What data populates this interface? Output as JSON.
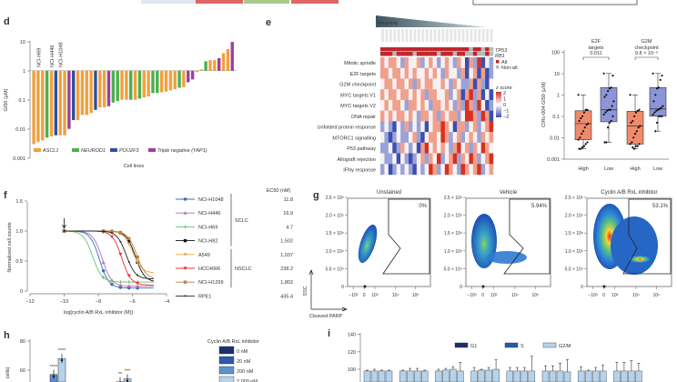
{
  "top_strip": {
    "colors": [
      "#dfe6ef",
      "#e06565",
      "#a9c98c",
      "#e06565"
    ]
  },
  "panel_labels": {
    "d": "d",
    "e": "e",
    "f": "f",
    "g": "g",
    "h": "h",
    "i": "i"
  },
  "chart_data": [
    {
      "id": "d",
      "type": "bar",
      "log_scale": true,
      "ylabel": "GI50 (µM)",
      "xlabel": "Cell lines",
      "ylim": [
        0.001,
        10
      ],
      "yticks": [
        "0.001",
        "0.01",
        "0.1",
        "1",
        "10"
      ],
      "baseline": 1,
      "values": [
        0.003,
        0.0035,
        0.004,
        0.005,
        0.0055,
        0.006,
        0.006,
        0.006,
        0.01,
        0.02,
        0.02,
        0.03,
        0.03,
        0.035,
        0.045,
        0.055,
        0.055,
        0.06,
        0.08,
        0.09,
        0.1,
        0.1,
        0.1,
        0.1,
        0.11,
        0.12,
        0.13,
        0.17,
        0.17,
        0.18,
        0.19,
        0.21,
        0.23,
        0.26,
        0.27,
        0.4,
        0.5,
        0.9,
        1.1,
        2.1,
        2.3,
        2.3,
        2.7,
        4,
        5.5,
        9.7
      ],
      "subtypes": [
        "A",
        "A",
        "A",
        "N",
        "A",
        "P",
        "A",
        "A",
        "Y",
        "P",
        "A",
        "A",
        "A",
        "A",
        "P",
        "A",
        "A",
        "Y",
        "N",
        "N",
        "A",
        "A",
        "N",
        "A",
        "N",
        "A",
        "A",
        "N",
        "N",
        "A",
        "A",
        "A",
        "A",
        "N",
        "A",
        "Y",
        "Y",
        "A",
        "A",
        "N",
        "A",
        "A",
        "Y",
        "A",
        "A",
        "Y"
      ],
      "annotations": [
        {
          "label": "NCI-H69",
          "bar": 1
        },
        {
          "label": "NCI-H446",
          "bar": 4
        },
        {
          "label": "NCI-H1048",
          "bar": 6
        }
      ],
      "legend": [
        {
          "key": "A",
          "label": "ASCL1",
          "color": "#f2a03d"
        },
        {
          "key": "N",
          "label": "NEUROD1",
          "color": "#4caf50"
        },
        {
          "key": "P",
          "label": "POU2F3",
          "color": "#2c4fa0"
        },
        {
          "key": "Y",
          "label": "Triple negative (YAP1)",
          "color": "#9c3f9c"
        }
      ]
    },
    {
      "id": "e-heatmap",
      "type": "heatmap",
      "header": "Sensitivity",
      "rows": [
        "Mitotic spindle",
        "E2F targets",
        "G2M checkpoint",
        "MYC targets V1",
        "MYC targets V2",
        "DNA repair",
        "Unfolded protein response",
        "MTORC1 signalling",
        "P53 pathway",
        "Allograft rejection",
        "IFNγ response"
      ],
      "annotation_rows": [
        "TP53",
        "RB1"
      ],
      "annotation_legend": [
        {
          "label": "Alt",
          "color": "#c0272d"
        },
        {
          "label": "Non-alt",
          "color": "#b8b8b8"
        }
      ],
      "annotation_values": [
        [
          1,
          1,
          1,
          1,
          1,
          1,
          1,
          1,
          1,
          1,
          1,
          1,
          1,
          1,
          1,
          1,
          1,
          1,
          1,
          1,
          1,
          1,
          0,
          1,
          1,
          0,
          1,
          0
        ],
        [
          1,
          1,
          1,
          0,
          1,
          1,
          1,
          1,
          0,
          1,
          1,
          1,
          1,
          1,
          0,
          1,
          1,
          1,
          0,
          1,
          1,
          0,
          0,
          1,
          0,
          0,
          1,
          0
        ]
      ],
      "scale_label": "z score",
      "scale_ticks": [
        "2",
        "1",
        "0",
        "−1",
        "−2"
      ],
      "values": [
        [
          1,
          0,
          1,
          1,
          0,
          -1,
          1,
          0,
          0,
          1,
          -1,
          0,
          1,
          0,
          -1,
          0,
          1,
          0,
          -1,
          1,
          0,
          -2,
          1,
          -1,
          2,
          -2,
          0,
          -1
        ],
        [
          1,
          1,
          0,
          1,
          1,
          0,
          1,
          0,
          1,
          0,
          0,
          1,
          0,
          1,
          0,
          -1,
          1,
          0,
          0,
          -1,
          1,
          -2,
          0,
          1,
          -2,
          1,
          -2,
          -1
        ],
        [
          0,
          1,
          1,
          0,
          1,
          1,
          0,
          1,
          -1,
          1,
          0,
          1,
          1,
          0,
          0,
          1,
          0,
          -1,
          1,
          0,
          -1,
          -1,
          1,
          -2,
          1,
          -1,
          -2,
          0
        ],
        [
          1,
          0,
          1,
          1,
          0,
          1,
          1,
          0,
          1,
          0,
          1,
          -1,
          1,
          1,
          0,
          0,
          1,
          -1,
          0,
          1,
          -2,
          1,
          2,
          -1,
          1,
          -2,
          0,
          -2
        ],
        [
          0,
          1,
          0,
          1,
          1,
          0,
          -1,
          1,
          1,
          0,
          1,
          0,
          -1,
          1,
          1,
          0,
          1,
          0,
          -1,
          1,
          -1,
          2,
          1,
          -1,
          2,
          0,
          -2,
          -1
        ],
        [
          1,
          0,
          1,
          0,
          1,
          1,
          0,
          1,
          0,
          -1,
          1,
          1,
          0,
          1,
          -1,
          1,
          0,
          1,
          1,
          -1,
          0,
          2,
          2,
          1,
          -1,
          2,
          1,
          -2
        ],
        [
          -1,
          0,
          -1,
          -2,
          0,
          -1,
          1,
          -1,
          0,
          -1,
          0,
          -2,
          0,
          1,
          1,
          2,
          1,
          0,
          -2,
          1,
          1,
          -1,
          0,
          1,
          -1,
          0,
          1,
          2
        ],
        [
          0,
          -1,
          -2,
          -1,
          0,
          -1,
          -1,
          0,
          1,
          -1,
          -2,
          0,
          1,
          1,
          0,
          2,
          1,
          -1,
          0,
          1,
          -1,
          0,
          1,
          0,
          -1,
          1,
          0,
          1
        ],
        [
          -1,
          -1,
          0,
          -2,
          -1,
          1,
          0,
          -1,
          0,
          -2,
          1,
          2,
          0,
          1,
          0,
          1,
          0,
          -1,
          1,
          2,
          0,
          1,
          -1,
          1,
          0,
          2,
          1,
          0
        ],
        [
          0,
          -1,
          -1,
          0,
          -2,
          0,
          -1,
          -2,
          -1,
          0,
          1,
          -1,
          1,
          0,
          2,
          -1,
          0,
          1,
          2,
          -1,
          1,
          0,
          2,
          1,
          -1,
          0,
          1,
          2
        ],
        [
          -1,
          0,
          -2,
          -1,
          0,
          -1,
          0,
          -1,
          -2,
          0,
          -1,
          0,
          2,
          1,
          -1,
          0,
          2,
          1,
          0,
          -1,
          2,
          1,
          0,
          1,
          2,
          -1,
          0,
          1
        ]
      ]
    },
    {
      "id": "e-box",
      "type": "box",
      "log_scale": true,
      "ylabel": "CIRc-004 GI50 (µM)",
      "ylim": [
        0.001,
        100
      ],
      "yticks": [
        "0.001",
        "0.01",
        "0.1",
        "1",
        "10",
        "100"
      ],
      "comparisons": [
        {
          "title": [
            "E2F",
            "targets"
          ],
          "p": "0.011"
        },
        {
          "title": [
            "G2M",
            "checkpoint"
          ],
          "p": "9.8 × 10⁻⁵"
        }
      ],
      "groups": [
        {
          "label": "High",
          "color": "#f08a6a",
          "q1": 0.008,
          "median": 0.045,
          "q3": 0.18,
          "min": 0.003,
          "max": 1,
          "points": [
            1,
            0.2,
            0.2,
            0.15,
            0.1,
            0.08,
            0.06,
            0.045,
            0.04,
            0.03,
            0.02,
            0.015,
            0.01,
            0.008,
            0.006,
            0.005,
            0.004,
            0.0035,
            0.003,
            0.003
          ]
        },
        {
          "label": "Low",
          "color": "#8c95d8",
          "q1": 0.055,
          "median": 0.2,
          "q3": 2.2,
          "min": 0.006,
          "max": 10,
          "points": [
            10,
            8,
            2.2,
            2,
            1.5,
            1,
            0.8,
            0.5,
            0.3,
            0.2,
            0.2,
            0.18,
            0.15,
            0.12,
            0.1,
            0.06,
            0.05,
            0.03,
            0.006,
            0.006
          ]
        },
        {
          "label": "High",
          "color": "#f08a6a",
          "q1": 0.005,
          "median": 0.035,
          "q3": 0.17,
          "min": 0.003,
          "max": 1,
          "points": [
            1,
            0.2,
            0.18,
            0.15,
            0.1,
            0.06,
            0.05,
            0.035,
            0.03,
            0.02,
            0.015,
            0.01,
            0.006,
            0.005,
            0.005,
            0.004,
            0.004,
            0.003,
            0.0035
          ]
        },
        {
          "label": "Low",
          "color": "#8c95d8",
          "q1": 0.1,
          "median": 0.22,
          "q3": 2.2,
          "min": 0.02,
          "max": 10,
          "points": [
            10,
            8,
            5,
            2.2,
            2,
            1,
            0.5,
            0.3,
            0.25,
            0.22,
            0.2,
            0.18,
            0.15,
            0.12,
            0.1,
            0.1,
            0.1,
            0.05,
            0.02
          ]
        }
      ]
    },
    {
      "id": "f",
      "type": "line",
      "xlabel": "log[cyclin A/B RxL inhibitor (M)]",
      "ylabel": "Normalized cell counts",
      "xlim": [
        -12,
        -4
      ],
      "ylim": [
        0,
        1.5
      ],
      "xticks": [
        "−12",
        "−10",
        "−8",
        "−6",
        "−4"
      ],
      "yticks": [
        "0",
        "0.5",
        "1.0",
        "1.5"
      ],
      "ec50_header": "EC50 (nM)",
      "groups": [
        {
          "label": "SCLC",
          "from": 0,
          "to": 3
        },
        {
          "label": "NSCLC",
          "from": 4,
          "to": 6
        }
      ],
      "series": [
        {
          "name": "NCI-H1048",
          "color": "#3b6fb6",
          "marker": "circle",
          "ec50": "11.8",
          "ec50_nM": 11.8,
          "bottom": 0.05
        },
        {
          "name": "NCI-H446",
          "color": "#b06fb8",
          "marker": "triangle",
          "ec50": "16.9",
          "ec50_nM": 16.9,
          "bottom": 0.08
        },
        {
          "name": "NCI-H69",
          "color": "#6bc06f",
          "marker": "plus",
          "ec50": "4.7",
          "ec50_nM": 4.7,
          "bottom": 0.15
        },
        {
          "name": "NCI-H82",
          "color": "#111111",
          "marker": "square",
          "ec50": "1,502",
          "ec50_nM": 1502,
          "bottom": 0.15
        },
        {
          "name": "A549",
          "color": "#f0a545",
          "marker": "down-triangle",
          "ec50": "1,037",
          "ec50_nM": 1037,
          "bottom": 0.3
        },
        {
          "name": "HCC4006",
          "color": "#e03636",
          "marker": "down-triangle",
          "ec50": "238.2",
          "ec50_nM": 238.2,
          "bottom": 0.1
        },
        {
          "name": "NCI-H1299",
          "color": "#b38545",
          "marker": "square",
          "ec50": "1,802",
          "ec50_nM": 1802,
          "bottom": 0.2
        },
        {
          "name": "RPE1",
          "color": "#222222",
          "marker": "dot",
          "ec50": "435.4",
          "ec50_nM": 435.4,
          "bottom": 0.2
        }
      ],
      "treatment_arrow_x": -10
    },
    {
      "id": "h",
      "type": "bar",
      "ylabel": "cells)",
      "ylim": [
        40,
        80
      ],
      "yticks": [
        "60",
        "80"
      ],
      "legend_title": "Cyclin A/B RxL inhibitor",
      "legend": [
        {
          "label": "0 nM",
          "color": "#1d2f6b"
        },
        {
          "label": "20 nM",
          "color": "#2d5aa8"
        },
        {
          "label": "200 nM",
          "color": "#5b93cf"
        },
        {
          "label": "2,000 nM",
          "color": "#b6d3ec"
        }
      ],
      "bars": [
        {
          "dose": 2,
          "value": 57,
          "sig": "****"
        },
        {
          "dose": 3,
          "value": 68,
          "sig": "****"
        },
        {
          "dose": 2,
          "value": 52,
          "sig": "**"
        },
        {
          "dose": 3,
          "value": 54,
          "sig": "***"
        }
      ]
    },
    {
      "id": "i",
      "type": "bar",
      "stacked": true,
      "ylim": [
        90,
        140
      ],
      "yticks": [
        "100",
        "120",
        "140"
      ],
      "legend": [
        {
          "label": "G1",
          "color": "#1d2f6b"
        },
        {
          "label": "S",
          "color": "#2d5aa8"
        },
        {
          "label": "G2/M",
          "color": "#b6d3ec"
        }
      ],
      "groups": [
        [
          [
            98,
            1
          ],
          [
            98,
            2
          ],
          [
            98,
            1
          ],
          [
            98,
            1
          ]
        ],
        [
          [
            98,
            1
          ],
          [
            98,
            3
          ],
          [
            98,
            3
          ],
          [
            98,
            1
          ]
        ],
        [
          [
            98,
            2
          ],
          [
            99,
            2
          ],
          [
            100,
            3
          ],
          [
            98,
            10
          ]
        ],
        [
          [
            98,
            4
          ],
          [
            99,
            1
          ],
          [
            99,
            3
          ],
          [
            100,
            11
          ]
        ],
        [
          [
            98,
            4
          ],
          [
            98,
            4
          ],
          [
            98,
            4
          ],
          [
            98,
            17
          ]
        ],
        [
          [
            98,
            6
          ],
          [
            98,
            6
          ],
          [
            98,
            9
          ],
          [
            97,
            14
          ]
        ],
        [
          [
            98,
            5
          ],
          [
            98,
            1
          ],
          [
            98,
            4
          ],
          [
            98,
            7
          ]
        ],
        [
          [
            98,
            10
          ],
          [
            98,
            10
          ],
          [
            98,
            12
          ],
          [
            98,
            9
          ]
        ]
      ]
    }
  ],
  "panel_g": {
    "plots": [
      {
        "title": "Unstained",
        "percent": "0%",
        "density": "low"
      },
      {
        "title": "Vehicle",
        "percent": "5.94%",
        "density": "mid"
      },
      {
        "title": "Cyclin A/B RxL inhibitor",
        "percent": "53.1%",
        "density": "high"
      }
    ],
    "yticks": [
      "0",
      "5.0 × 10⁴",
      "1.0 × 10⁵",
      "1.5 × 10⁵",
      "2.0 × 10⁵",
      "2.5 × 10⁵"
    ],
    "xticks": [
      "−10³",
      "0",
      "10³",
      "10⁴",
      "10⁵"
    ],
    "ylabel": "SSC",
    "xlabel": "Cleaved PARP"
  }
}
